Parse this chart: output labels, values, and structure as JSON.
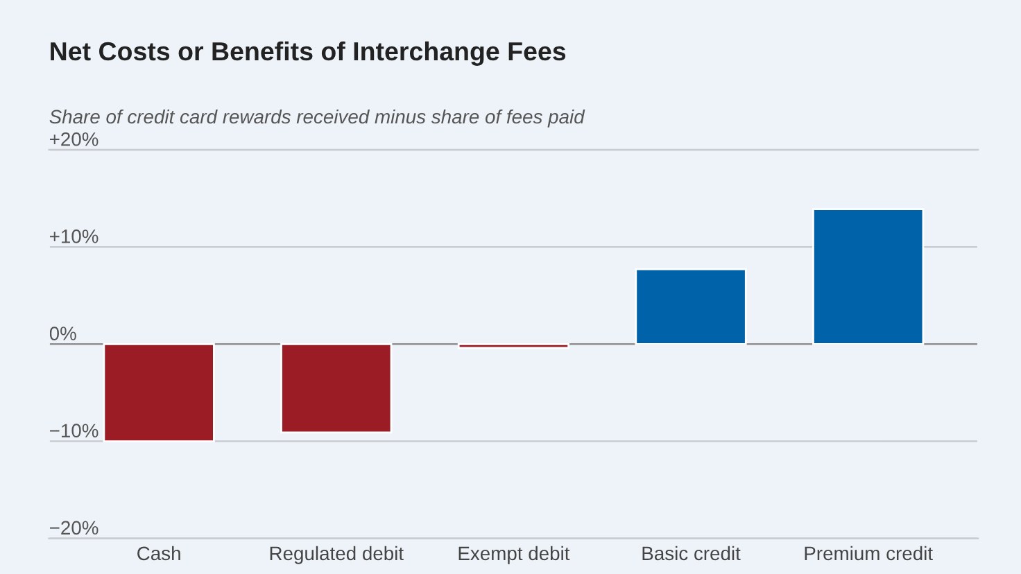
{
  "chart_data": {
    "type": "bar",
    "title": "Net Costs or Benefits of Interchange Fees",
    "subtitle": "Share of credit card rewards received minus share of fees paid",
    "categories": [
      "Cash",
      "Regulated debit",
      "Exempt debit",
      "Basic credit",
      "Premium credit"
    ],
    "values": [
      -10.0,
      -9.1,
      -0.4,
      7.7,
      13.9
    ],
    "colors": [
      "#9b1c24",
      "#9b1c24",
      "#9b1c24",
      "#0062a8",
      "#0062a8"
    ],
    "ylim": [
      -20,
      20
    ],
    "yticks": [
      {
        "value": 20,
        "label": "+20%"
      },
      {
        "value": 10,
        "label": "+10%"
      },
      {
        "value": 0,
        "label": "0%"
      },
      {
        "value": -10,
        "label": "−10%"
      },
      {
        "value": -20,
        "label": "−20%"
      }
    ],
    "grid": "y"
  }
}
